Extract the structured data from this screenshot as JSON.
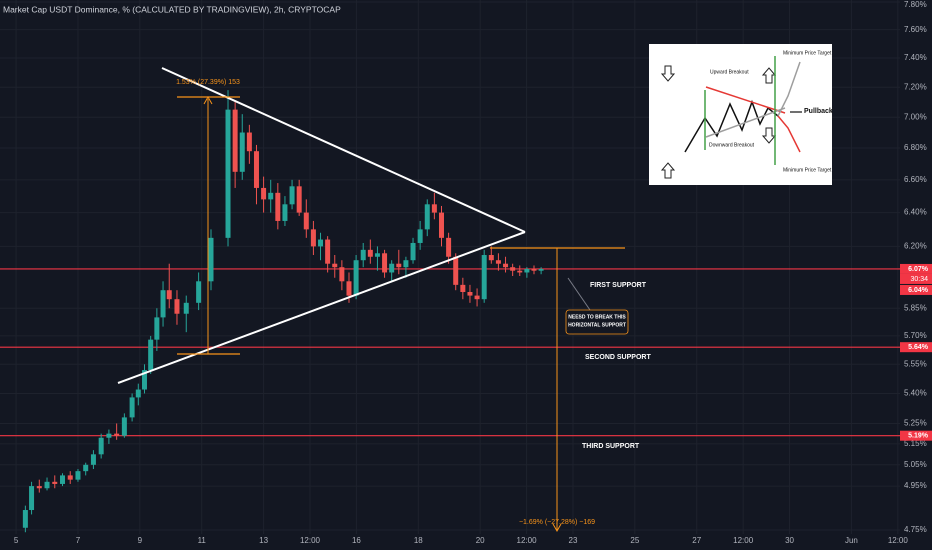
{
  "chart_data": {
    "type": "candlestick",
    "title": "Market Cap USDT Dominance, % (CALCULATED BY TRADINGVIEW), 2h, CRYPTOCAP",
    "log_scale": true,
    "grid": true,
    "up_color": "#26a69a",
    "down_color": "#ef5350",
    "x": [
      5.3,
      5.5,
      5.75,
      6.0,
      6.25,
      6.5,
      6.75,
      7.0,
      7.25,
      7.5,
      7.75,
      8.0,
      8.25,
      8.5,
      8.75,
      8.95,
      9.15,
      9.35,
      9.55,
      9.75,
      9.95,
      10.2,
      10.5,
      10.9,
      11.3,
      11.85,
      12.08,
      12.31,
      12.54,
      12.77,
      13.0,
      13.23,
      13.46,
      13.69,
      13.92,
      14.15,
      14.38,
      14.61,
      14.84,
      15.07,
      15.3,
      15.53,
      15.76,
      15.99,
      16.22,
      16.45,
      16.68,
      16.91,
      17.14,
      17.37,
      17.6,
      17.83,
      18.06,
      18.29,
      18.52,
      18.75,
      18.98,
      19.21,
      19.44,
      19.67,
      19.9,
      20.13,
      20.36,
      20.59,
      20.82,
      21.05,
      21.28,
      21.51,
      21.74,
      21.97
    ],
    "open": [
      4.76,
      4.84,
      4.95,
      4.94,
      4.97,
      4.96,
      5.0,
      4.98,
      5.02,
      5.05,
      5.1,
      5.18,
      5.2,
      5.19,
      5.28,
      5.38,
      5.42,
      5.52,
      5.68,
      5.8,
      5.95,
      5.9,
      5.82,
      5.88,
      6.0,
      6.25,
      7.05,
      6.65,
      6.9,
      6.78,
      6.55,
      6.48,
      6.52,
      6.35,
      6.45,
      6.56,
      6.4,
      6.3,
      6.2,
      6.24,
      6.1,
      6.08,
      6.0,
      5.92,
      6.12,
      6.18,
      6.14,
      6.16,
      6.05,
      6.1,
      6.08,
      6.12,
      6.22,
      6.3,
      6.45,
      6.4,
      6.25,
      6.14,
      5.98,
      5.94,
      5.92,
      5.9,
      6.15,
      6.12,
      6.1,
      6.08,
      6.06,
      6.05,
      6.07,
      6.06
    ],
    "high": [
      4.86,
      4.97,
      4.98,
      4.99,
      5.0,
      5.01,
      5.02,
      5.03,
      5.06,
      5.12,
      5.2,
      5.22,
      5.25,
      5.3,
      5.4,
      5.45,
      5.55,
      5.7,
      5.85,
      6.0,
      6.1,
      5.95,
      5.92,
      6.05,
      6.3,
      7.18,
      7.1,
      7.02,
      6.95,
      6.82,
      6.62,
      6.6,
      6.58,
      6.5,
      6.6,
      6.6,
      6.48,
      6.35,
      6.28,
      6.26,
      6.15,
      6.12,
      6.05,
      6.15,
      6.22,
      6.24,
      6.2,
      6.18,
      6.12,
      6.18,
      6.14,
      6.25,
      6.35,
      6.48,
      6.52,
      6.44,
      6.28,
      6.16,
      6.02,
      5.98,
      5.96,
      6.18,
      6.2,
      6.16,
      6.14,
      6.1,
      6.09,
      6.08,
      6.09,
      6.08
    ],
    "low": [
      4.74,
      4.82,
      4.92,
      4.93,
      4.94,
      4.95,
      4.96,
      4.97,
      5.0,
      5.03,
      5.08,
      5.15,
      5.17,
      5.18,
      5.26,
      5.34,
      5.4,
      5.5,
      5.62,
      5.75,
      5.85,
      5.76,
      5.72,
      5.84,
      5.95,
      6.2,
      6.55,
      6.6,
      6.7,
      6.45,
      6.4,
      6.4,
      6.3,
      6.32,
      6.42,
      6.38,
      6.25,
      6.15,
      6.12,
      6.05,
      6.02,
      5.95,
      5.88,
      5.9,
      6.08,
      6.1,
      6.06,
      6.02,
      6.0,
      6.04,
      6.02,
      6.1,
      6.18,
      6.26,
      6.36,
      6.2,
      6.1,
      5.95,
      5.9,
      5.88,
      5.86,
      5.88,
      6.1,
      6.06,
      6.05,
      6.03,
      6.03,
      6.02,
      6.04,
      6.04
    ],
    "close": [
      4.84,
      4.95,
      4.94,
      4.97,
      4.96,
      5.0,
      4.98,
      5.02,
      5.05,
      5.1,
      5.18,
      5.2,
      5.19,
      5.28,
      5.38,
      5.42,
      5.52,
      5.68,
      5.8,
      5.95,
      5.9,
      5.82,
      5.88,
      6.0,
      6.25,
      7.05,
      6.65,
      6.9,
      6.78,
      6.55,
      6.48,
      6.52,
      6.35,
      6.45,
      6.56,
      6.4,
      6.3,
      6.2,
      6.24,
      6.1,
      6.08,
      6.0,
      5.92,
      6.12,
      6.18,
      6.14,
      6.16,
      6.05,
      6.1,
      6.08,
      6.12,
      6.22,
      6.3,
      6.45,
      6.4,
      6.25,
      6.14,
      5.98,
      5.94,
      5.92,
      5.9,
      6.15,
      6.12,
      6.1,
      6.08,
      6.06,
      6.05,
      6.07,
      6.06,
      6.07
    ],
    "xlim": [
      4.48,
      33.57
    ],
    "xticks": [
      5,
      7,
      9,
      11,
      13,
      {
        "value": 14.5,
        "label": "12:00"
      },
      16,
      18,
      20,
      {
        "value": 21.5,
        "label": "12:00"
      },
      23,
      25,
      27,
      {
        "value": 28.5,
        "label": "12:00"
      },
      30,
      {
        "value": 32,
        "label": "Jun"
      },
      {
        "value": 33.5,
        "label": "12:00"
      }
    ],
    "ylim": [
      4.75,
      7.8
    ],
    "yticks": [
      {
        "value": 7.8,
        "label": "7.80%"
      },
      {
        "value": 7.6,
        "label": "7.60%"
      },
      {
        "value": 7.4,
        "label": "7.40%"
      },
      {
        "value": 7.2,
        "label": "7.20%"
      },
      {
        "value": 7.0,
        "label": "7.00%"
      },
      {
        "value": 6.8,
        "label": "6.80%"
      },
      {
        "value": 6.6,
        "label": "6.60%"
      },
      {
        "value": 6.4,
        "label": "6.40%"
      },
      {
        "value": 6.2,
        "label": "6.20%"
      },
      {
        "value": 5.85,
        "label": "5.85%"
      },
      {
        "value": 5.7,
        "label": "5.70%"
      },
      {
        "value": 5.55,
        "label": "5.55%"
      },
      {
        "value": 5.4,
        "label": "5.40%"
      },
      {
        "value": 5.25,
        "label": "5.25%"
      },
      {
        "value": 5.15,
        "label": "5.15%"
      },
      {
        "value": 5.05,
        "label": "5.05%"
      },
      {
        "value": 4.95,
        "label": "4.95%"
      },
      {
        "value": 4.75,
        "label": "4.75%"
      }
    ],
    "price_labels": [
      {
        "value": 6.07,
        "label": "6.07%",
        "line": true
      },
      {
        "value": 6.04,
        "label": "6.04%",
        "line": false
      },
      {
        "value": 5.64,
        "label": "5.64%",
        "line": true
      },
      {
        "value": 5.19,
        "label": "5.19%",
        "line": true
      }
    ],
    "countdown": "30:34",
    "annotations": {
      "measure_up": "1.53% (27.39%) 153",
      "measure_down": "−1.69% (−27.28%) −169",
      "first_support": "FIRST SUPPORT",
      "second_support": "SECOND SUPPORT",
      "third_support": "THIRD SUPPORT",
      "note_line1": "NEESD TO BREAK THIS",
      "note_line2": "HORIZONTAL SUPPORT"
    },
    "inset": {
      "target_top": "Minimum Price Target",
      "upward": "Upward Breakout",
      "pullback": "Pullback",
      "downward": "Downward Breakout",
      "target_bottom": "Minimum Price Target"
    }
  }
}
